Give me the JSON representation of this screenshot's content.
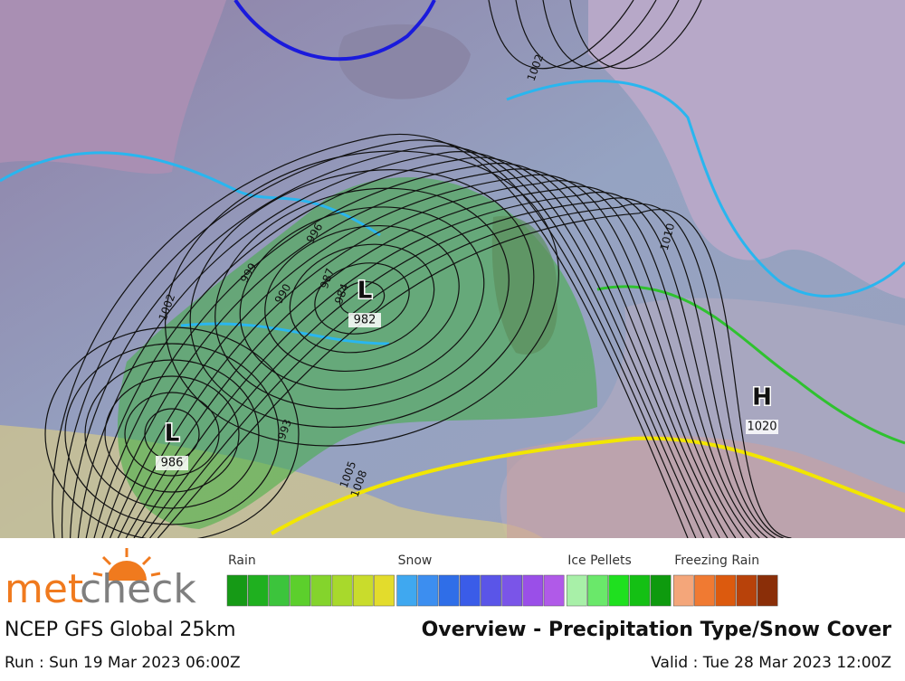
{
  "map": {
    "pressure_systems": [
      {
        "label": "L",
        "value": "982"
      },
      {
        "label": "L",
        "value": "986"
      },
      {
        "label": "H",
        "value": "1020"
      }
    ],
    "isobar_labels": [
      "996",
      "999",
      "1002",
      "990",
      "987",
      "984",
      "993",
      "1005",
      "1008",
      "1002",
      "1010"
    ]
  },
  "legend": [
    {
      "name": "Rain",
      "colors": [
        "#169a16",
        "#1fb01f",
        "#3cc43c",
        "#5ccf2c",
        "#84d42c",
        "#a8d92c",
        "#c9dc2c",
        "#e3dc2c"
      ]
    },
    {
      "name": "Snow",
      "colors": [
        "#3fa8f0",
        "#3c8ef0",
        "#2f6ee8",
        "#3a5ce8",
        "#5a55e8",
        "#7a55e8",
        "#9a4fe8",
        "#b05ae8"
      ]
    },
    {
      "name": "Ice Pellets",
      "colors": [
        "#a8f0a8",
        "#6ae86a",
        "#1fe01f",
        "#14c014",
        "#0e9a0e"
      ]
    },
    {
      "name": "Freezing Rain",
      "colors": [
        "#f4a67a",
        "#f07a32",
        "#dc5a0e",
        "#b8420a",
        "#8a2e08"
      ]
    }
  ],
  "footer": {
    "logo": {
      "part1": "met",
      "part2": "check"
    },
    "model": "NCEP GFS Global 25km",
    "title": "Overview - Precipitation Type/Snow Cover",
    "run": "Run : Sun 19 Mar 2023 06:00Z",
    "valid": "Valid : Tue 28 Mar 2023 12:00Z"
  }
}
